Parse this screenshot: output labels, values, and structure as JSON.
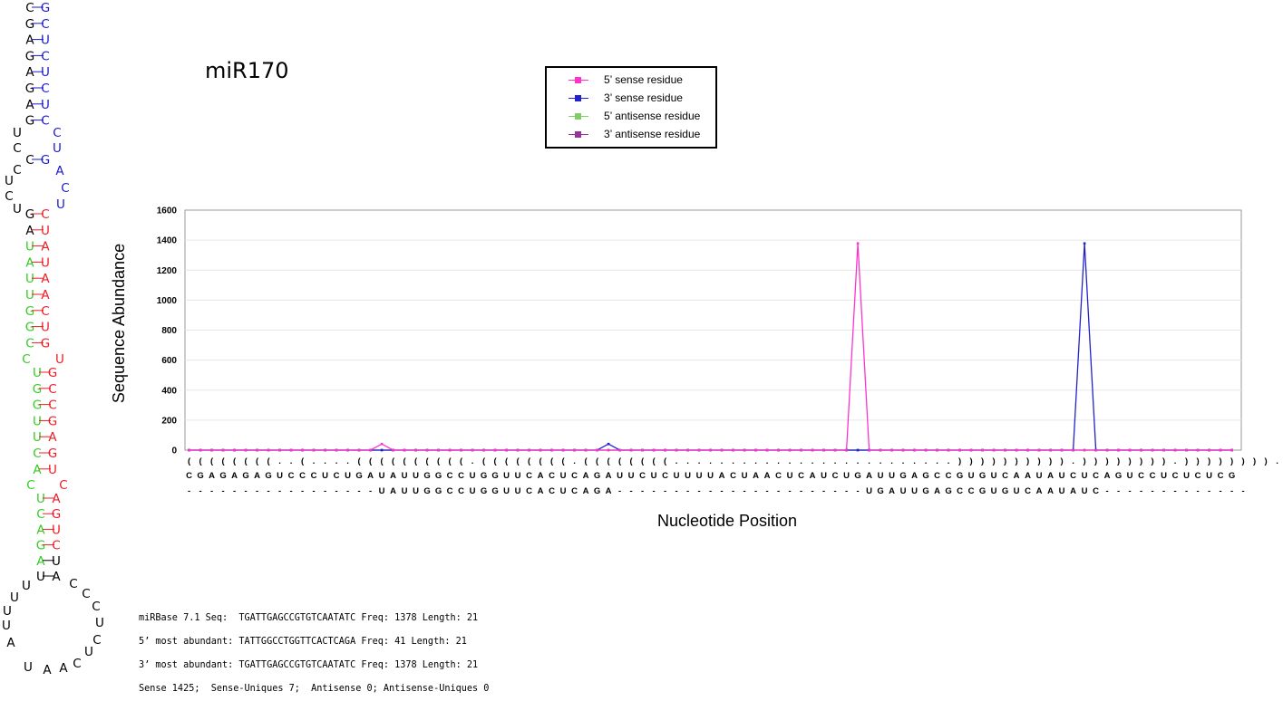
{
  "title": "miR170",
  "legend": [
    {
      "label": "5’ sense residue",
      "color": "#ff33cc"
    },
    {
      "label": "3’ sense residue",
      "color": "#2222cc"
    },
    {
      "label": "5’ antisense residue",
      "color": "#80cc66"
    },
    {
      "label": "3’ antisense residue",
      "color": "#993399"
    }
  ],
  "stats": [
    "miRBase 7.1 Seq:  TGATTGAGCCGTGTCAATATC Freq: 1378 Length: 21",
    "5’ most abundant: TATTGGCCTGGTTCACTCAGA Freq: 41 Length: 21",
    "3’ most abundant: TGATTGAGCCGTGTCAATATC Freq: 1378 Length: 21",
    "Sense 1425;  Sense-Uniques 7;  Antisense 0; Antisense-Uniques 0"
  ],
  "chart_data": {
    "type": "line",
    "xlabel": "Nucleotide Position",
    "ylabel": "Sequence Abundance",
    "ylim": [
      0,
      1600
    ],
    "yticks": [
      0,
      200,
      400,
      600,
      800,
      1000,
      1200,
      1400,
      1600
    ],
    "grid": true,
    "structure_row": "((((((((..(....((((((((((.((((((((.((((((((.........................)))))))))).)))))))).))))))))...)..)))))))",
    "sequence_row": "CGAGAGAGUCCCUCUGAUAUUGGCCUGGUUCACUCAGAUUCUCUUUUACUAACUCAUCUGAUUGAGCCGUGUCAAUAUCUCAGUCCUCUCUCG",
    "mature_row": "-----------------UAUUGGCCUGGUUCACUCAGA----------------------UGAUUGAGCCGUGUCAAUAUC-------------",
    "series": [
      {
        "name": "5’ sense residue",
        "color": "#ff33cc",
        "points": [
          {
            "x": 18,
            "y": 41
          },
          {
            "x": 60,
            "y": 1378
          }
        ]
      },
      {
        "name": "3’ sense residue",
        "color": "#2222cc",
        "points": [
          {
            "x": 38,
            "y": 41
          },
          {
            "x": 80,
            "y": 1378
          }
        ]
      },
      {
        "name": "5’ antisense residue",
        "color": "#80cc66",
        "points": []
      },
      {
        "name": "3’ antisense residue",
        "color": "#993399",
        "points": []
      }
    ]
  },
  "hairpin": {
    "stem_upper": [
      [
        "C",
        "G"
      ],
      [
        "G",
        "C"
      ],
      [
        "A",
        "U"
      ],
      [
        "G",
        "C"
      ],
      [
        "A",
        "U"
      ],
      [
        "G",
        "C"
      ],
      [
        "A",
        "U"
      ],
      [
        "G",
        "C"
      ]
    ],
    "bulge_left": [
      "U",
      "C",
      "C",
      "U",
      "C",
      "U"
    ],
    "bulge_right": [
      "C",
      "U",
      "A",
      "C",
      "U"
    ],
    "pair_bulge": [
      "C",
      "G"
    ],
    "stem_lower_a": [
      [
        "G",
        "C"
      ],
      [
        "A",
        "U"
      ],
      [
        "U",
        "A"
      ],
      [
        "A",
        "U"
      ],
      [
        "U",
        "A"
      ],
      [
        "U",
        "A"
      ],
      [
        "G",
        "C"
      ],
      [
        "G",
        "U"
      ],
      [
        "C",
        "G"
      ]
    ],
    "loop_a": [
      "C",
      "U"
    ],
    "stem_lower_b": [
      [
        "U",
        "G"
      ],
      [
        "G",
        "C"
      ],
      [
        "G",
        "C"
      ],
      [
        "U",
        "G"
      ],
      [
        "U",
        "A"
      ],
      [
        "C",
        "G"
      ],
      [
        "A",
        "U"
      ]
    ],
    "loop_b": [
      "C",
      "C"
    ],
    "stem_lower_c": [
      [
        "U",
        "A"
      ],
      [
        "C",
        "G"
      ],
      [
        "A",
        "U"
      ],
      [
        "G",
        "C"
      ],
      [
        "A",
        "U"
      ],
      [
        "U",
        "A"
      ]
    ],
    "terminal_loop": [
      "C",
      "U",
      "C",
      "U",
      "C",
      "U",
      "U",
      "U",
      "A",
      "C",
      "U",
      "A",
      "A",
      "C",
      "U",
      "C"
    ]
  }
}
